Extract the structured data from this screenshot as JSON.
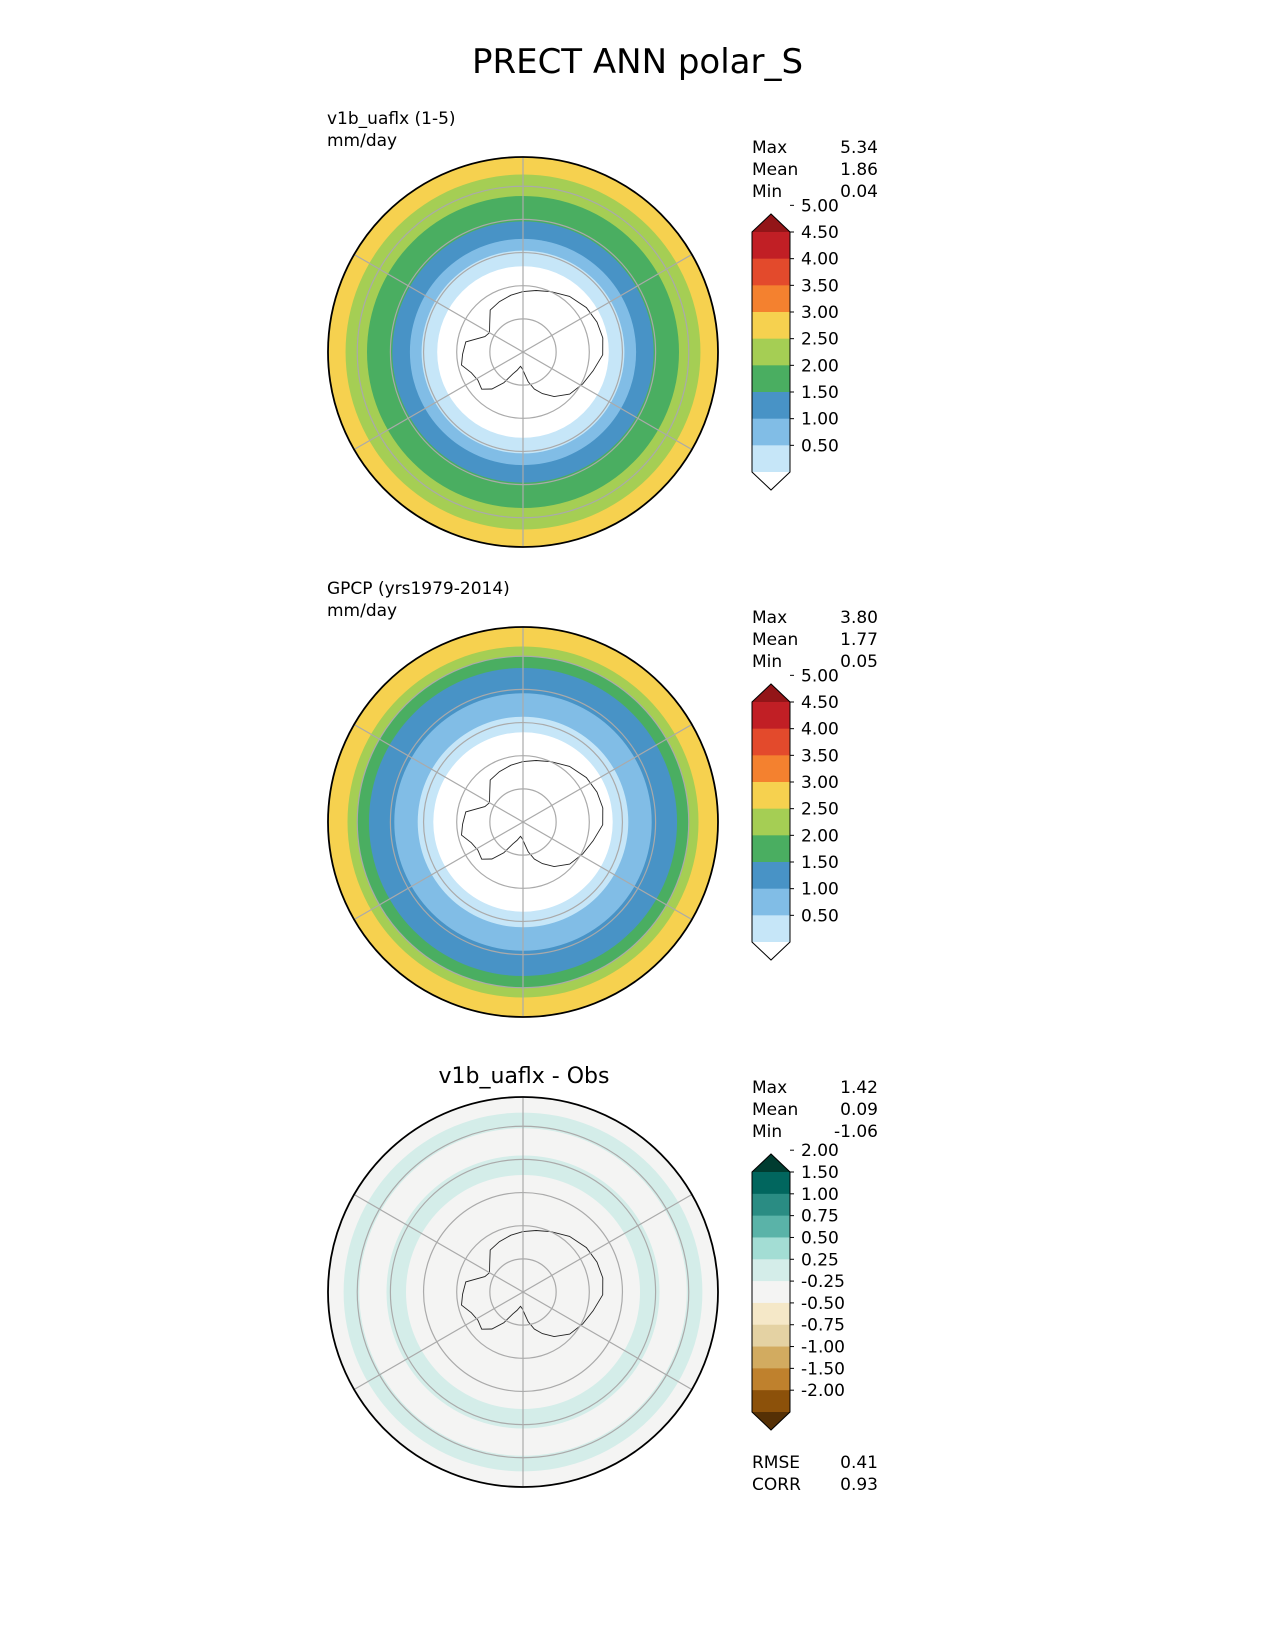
{
  "figure": {
    "title": "PRECT ANN polar_S"
  },
  "chart_data": [
    {
      "type": "heatmap",
      "title": "v1b_uaflx (1-5)",
      "units": "mm/day",
      "projection": "south polar stereographic",
      "stats": [
        {
          "label": "Max",
          "value": "5.34"
        },
        {
          "label": "Mean",
          "value": "1.86"
        },
        {
          "label": "Min",
          "value": "0.04"
        }
      ],
      "colorbar": {
        "levels": [
          0.5,
          1.0,
          1.5,
          2.0,
          2.5,
          3.0,
          3.5,
          4.0,
          4.5,
          5.0
        ],
        "tick_labels": [
          "0.50",
          "1.00",
          "1.50",
          "2.00",
          "2.50",
          "3.00",
          "3.50",
          "4.00",
          "4.50",
          "5.00"
        ],
        "colors": [
          "#ffffff",
          "#c6e6f8",
          "#81bde6",
          "#4893c6",
          "#4aae61",
          "#a5ce54",
          "#f6d14f",
          "#f4812f",
          "#e34a2c",
          "#c11f25",
          "#931518"
        ],
        "extend": "both"
      },
      "zones": [
        {
          "from_edge": 0.0,
          "value": 3.2
        },
        {
          "from_edge": 0.09,
          "value": 2.7
        },
        {
          "from_edge": 0.2,
          "value": 2.2
        },
        {
          "from_edge": 0.33,
          "value": 1.7
        },
        {
          "from_edge": 0.42,
          "value": 1.2
        },
        {
          "from_edge": 0.48,
          "value": 0.7
        },
        {
          "from_edge": 0.56,
          "value": 0.3
        }
      ]
    },
    {
      "type": "heatmap",
      "title": "GPCP (yrs1979-2014)",
      "units": "mm/day",
      "projection": "south polar stereographic",
      "stats": [
        {
          "label": "Max",
          "value": "3.80"
        },
        {
          "label": "Mean",
          "value": "1.77"
        },
        {
          "label": "Min",
          "value": "0.05"
        }
      ],
      "colorbar": {
        "levels": [
          0.5,
          1.0,
          1.5,
          2.0,
          2.5,
          3.0,
          3.5,
          4.0,
          4.5,
          5.0
        ],
        "tick_labels": [
          "0.50",
          "1.00",
          "1.50",
          "2.00",
          "2.50",
          "3.00",
          "3.50",
          "4.00",
          "4.50",
          "5.00"
        ],
        "colors": [
          "#ffffff",
          "#c6e6f8",
          "#81bde6",
          "#4893c6",
          "#4aae61",
          "#a5ce54",
          "#f6d14f",
          "#f4812f",
          "#e34a2c",
          "#c11f25",
          "#931518"
        ],
        "extend": "both"
      },
      "zones": [
        {
          "from_edge": 0.0,
          "value": 3.2
        },
        {
          "from_edge": 0.1,
          "value": 2.7
        },
        {
          "from_edge": 0.15,
          "value": 2.2
        },
        {
          "from_edge": 0.21,
          "value": 1.7
        },
        {
          "from_edge": 0.34,
          "value": 1.2
        },
        {
          "from_edge": 0.46,
          "value": 0.7
        },
        {
          "from_edge": 0.54,
          "value": 0.3
        }
      ]
    },
    {
      "type": "heatmap",
      "title": "v1b_uaflx - Obs",
      "units": "",
      "projection": "south polar stereographic",
      "stats": [
        {
          "label": "Max",
          "value": "1.42"
        },
        {
          "label": "Mean",
          "value": "0.09"
        },
        {
          "label": "Min",
          "value": "-1.06"
        }
      ],
      "metrics": [
        {
          "label": "RMSE",
          "value": "0.41"
        },
        {
          "label": "CORR",
          "value": "0.93"
        }
      ],
      "colorbar": {
        "levels": [
          -2.0,
          -1.5,
          -1.0,
          -0.75,
          -0.5,
          -0.25,
          0.25,
          0.5,
          0.75,
          1.0,
          1.5,
          2.0
        ],
        "tick_labels": [
          "-2.00",
          "-1.50",
          "-1.00",
          "-0.75",
          "-0.50",
          "-0.25",
          "0.25",
          "0.50",
          "0.75",
          "1.00",
          "1.50",
          "2.00"
        ],
        "colors": [
          "#553005",
          "#8c510a",
          "#bf812d",
          "#d2ab60",
          "#e4d2a3",
          "#f5e8c8",
          "#f4f4f3",
          "#d4ede9",
          "#a3ddd4",
          "#5ab3a8",
          "#2a8c83",
          "#01665e",
          "#003c30"
        ],
        "extend": "both"
      },
      "zones": [
        {
          "from_edge": 0.0,
          "value": 0.0
        },
        {
          "from_edge": 0.08,
          "value": 0.35
        },
        {
          "from_edge": 0.16,
          "value": 0.0
        },
        {
          "from_edge": 0.3,
          "value": 0.35
        },
        {
          "from_edge": 0.4,
          "value": 0.0
        }
      ]
    }
  ]
}
